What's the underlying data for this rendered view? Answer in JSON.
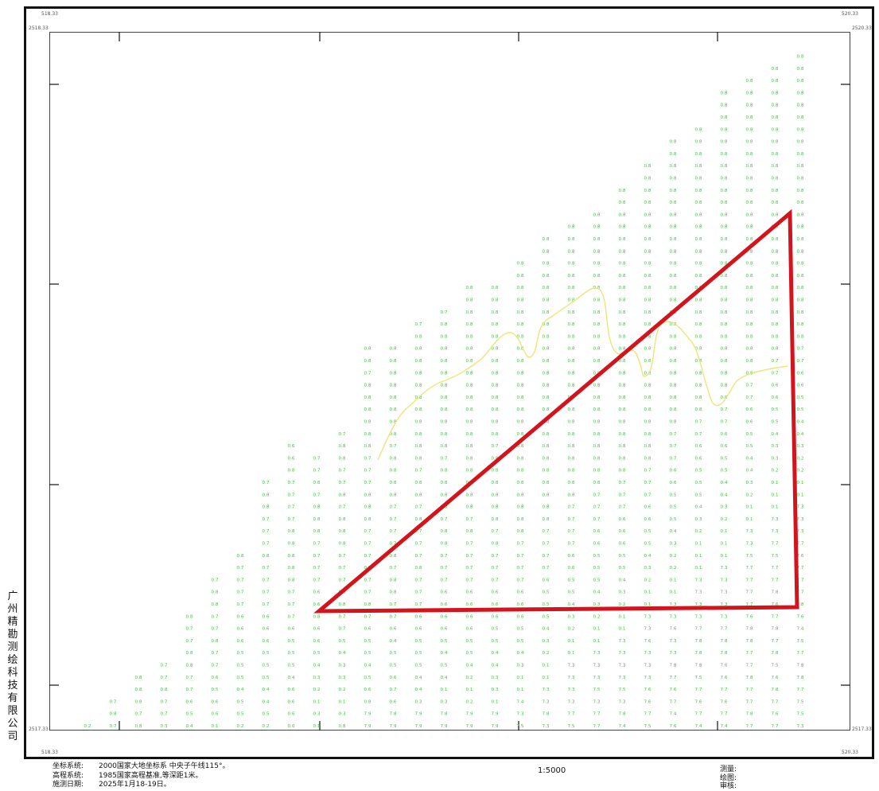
{
  "corners": {
    "top_left_x": "518.33",
    "top_left_y": "2518.33",
    "top_right_x": "520.33",
    "top_right_y": "2520.33",
    "bottom_left_x": "518.33",
    "bottom_left_y": "2517.33",
    "bottom_right_x": "520.33",
    "bottom_right_y": "2517.33"
  },
  "company": [
    "广",
    "州",
    "精",
    "勘",
    "测",
    "绘",
    "科",
    "技",
    "有",
    "限",
    "公",
    "司"
  ],
  "info": {
    "coord_label": "坐标系统:",
    "coord_value": "2000国家大地坐标系 中央子午线115°。",
    "height_label": "高程系统:",
    "height_value": "1985国家高程基准,等深距1米。",
    "date_label": "施测日期:",
    "date_value": "2025年1月18-19日。"
  },
  "scale": "1:5000",
  "staff": {
    "survey": "测量:",
    "draw": "绘图:",
    "check": "审核:"
  },
  "colors": {
    "soundings": "#3ec43e",
    "triangle": "#d4141c",
    "contour": "#ece57a",
    "frame": "#111111"
  },
  "icons": {
    "boundary": "triangle-boundary-icon",
    "contour": "depth-contour-line"
  },
  "soundings": [
    [
      "0.2"
    ],
    [
      "0.7",
      "0.8",
      "0.7"
    ],
    [
      "0.8",
      "0.7",
      "0.8",
      "0.8",
      "0.8"
    ],
    [
      "0.3",
      "0.7",
      "0.7",
      "0.8",
      "0.7",
      "0.7"
    ],
    [
      "0.4",
      "0.5",
      "0.6",
      "0.7",
      "0.7",
      "0.8",
      "0.8",
      "0.7",
      "0.7",
      "0.8"
    ],
    [
      "0.1",
      "0.6",
      "0.6",
      "0.5",
      "0.6",
      "0.7",
      "0.7",
      "0.8",
      "0.7",
      "0.7",
      "0.8",
      "0.8",
      "0.7"
    ],
    [
      "0.2",
      "0.5",
      "0.5",
      "0.4",
      "0.5",
      "0.5",
      "0.5",
      "0.6",
      "0.6",
      "0.6",
      "0.7",
      "0.7",
      "0.7",
      "0.7",
      "0.8"
    ],
    [
      "0.2",
      "0.5",
      "0.4",
      "0.4",
      "0.5",
      "0.5",
      "0.5",
      "0.6",
      "0.6",
      "0.6",
      "0.7",
      "0.7",
      "0.7",
      "0.7",
      "0.8",
      "0.7",
      "0.7",
      "0.7",
      "0.8",
      "0.8",
      "0.7"
    ],
    [
      "0.0",
      "0.6",
      "0.6",
      "0.6",
      "0.4",
      "0.5",
      "0.5",
      "0.5",
      "0.6",
      "0.7",
      "0.7",
      "0.7",
      "0.8",
      "0.8",
      "0.8",
      "0.8",
      "0.8",
      "0.7",
      "0.7",
      "0.7",
      "0.7",
      "0.8",
      "0.6",
      "0.6"
    ],
    [
      "0.1",
      "0.3",
      "0.1",
      "0.2",
      "0.3",
      "0.4",
      "0.5",
      "0.6",
      "0.6",
      "0.8",
      "0.6",
      "0.6",
      "0.7",
      "0.7",
      "0.7",
      "0.7",
      "0.8",
      "0.8",
      "0.8",
      "0.7",
      "0.8",
      "0.7",
      "0.7"
    ],
    [
      "0.8",
      "0.3",
      "0.1",
      "0.2",
      "0.3",
      "0.3",
      "0.4",
      "0.5",
      "0.7",
      "0.7",
      "0.8",
      "0.8",
      "0.7",
      "0.7",
      "0.7",
      "0.8",
      "0.8",
      "0.8",
      "0.7",
      "0.8",
      "0.7",
      "0.7",
      "0.8",
      "0.8",
      "0.7"
    ],
    [
      "7.9",
      "7.9",
      "0.8",
      "0.6",
      "0.5",
      "0.4",
      "0.5",
      "0.5",
      "0.6",
      "0.7",
      "0.8",
      "0.7",
      "0.7",
      "0.7",
      "0.7",
      "0.7",
      "0.7",
      "0.8",
      "0.8",
      "0.8",
      "0.7",
      "0.7",
      "0.7",
      "0.8",
      "0.8",
      "0.8",
      "0.8",
      "0.8",
      "0.8",
      "0.7",
      "0.8",
      "0.8"
    ],
    [
      "7.9",
      "7.8",
      "0.6",
      "0.7",
      "0.6",
      "0.5",
      "0.5",
      "0.4",
      "0.6",
      "0.7",
      "0.7",
      "0.8",
      "0.8",
      "0.7",
      "0.8",
      "0.7",
      "0.7",
      "0.7",
      "0.7",
      "0.8",
      "0.8",
      "0.8",
      "0.8",
      "0.7",
      "0.8",
      "0.8",
      "0.8",
      "0.8",
      "0.8",
      "0.8",
      "0.8",
      "0.8"
    ],
    [
      "7.9",
      "7.9",
      "0.3",
      "0.4",
      "0.4",
      "0.5",
      "0.5",
      "0.5",
      "0.6",
      "0.6",
      "0.7",
      "0.7",
      "0.7",
      "0.8",
      "0.7",
      "0.7",
      "0.7",
      "0.8",
      "0.7",
      "0.8",
      "0.8",
      "0.7",
      "0.8",
      "0.8",
      "0.8",
      "0.8",
      "0.8",
      "0.8",
      "0.8",
      "0.8",
      "0.8",
      "0.8",
      "0.8",
      "0.7"
    ],
    [
      "7.9",
      "7.8",
      "0.3",
      "0.1",
      "0.4",
      "0.5",
      "0.4",
      "0.5",
      "0.6",
      "0.6",
      "0.6",
      "0.6",
      "0.7",
      "0.7",
      "0.7",
      "0.8",
      "0.8",
      "0.7",
      "0.8",
      "0.8",
      "0.8",
      "0.8",
      "0.7",
      "0.8",
      "0.8",
      "0.8",
      "0.8",
      "0.8",
      "0.8",
      "0.8",
      "0.8",
      "0.8",
      "0.8",
      "0.8",
      "0.7"
    ],
    [
      "7.9",
      "7.9",
      "0.2",
      "0.1",
      "0.2",
      "0.4",
      "0.5",
      "0.5",
      "0.6",
      "0.6",
      "0.6",
      "0.6",
      "0.7",
      "0.7",
      "0.7",
      "0.7",
      "0.8",
      "0.7",
      "0.8",
      "0.8",
      "0.7",
      "0.8",
      "0.8",
      "0.8",
      "0.8",
      "0.8",
      "0.8",
      "0.8",
      "0.8",
      "0.8",
      "0.8",
      "0.8",
      "0.8",
      "0.8",
      "0.8",
      "0.8",
      "0.8"
    ],
    [
      "7.9",
      "7.9",
      "0.1",
      "0.3",
      "0.3",
      "0.4",
      "0.4",
      "0.5",
      "0.5",
      "0.6",
      "0.6",
      "0.6",
      "0.7",
      "0.7",
      "0.7",
      "0.8",
      "0.7",
      "0.8",
      "0.8",
      "0.8",
      "0.8",
      "0.8",
      "0.8",
      "0.7",
      "0.8",
      "0.8",
      "0.8",
      "0.8",
      "0.8",
      "0.8",
      "0.8",
      "0.8",
      "0.8",
      "0.8",
      "0.8",
      "0.8",
      "0.8"
    ],
    [
      "7.5",
      "7.3",
      "7.4",
      "0.1",
      "0.1",
      "0.3",
      "0.4",
      "0.5",
      "0.5",
      "0.6",
      "0.6",
      "0.6",
      "0.7",
      "0.7",
      "0.7",
      "0.7",
      "0.8",
      "0.8",
      "0.8",
      "0.8",
      "0.8",
      "0.8",
      "0.8",
      "0.8",
      "0.8",
      "0.8",
      "0.8",
      "0.8",
      "0.8",
      "0.8",
      "0.8",
      "0.8",
      "0.8",
      "0.8",
      "0.8",
      "0.8",
      "0.8",
      "0.8",
      "0.8"
    ],
    [
      "7.3",
      "7.8",
      "7.3",
      "7.3",
      "0.1",
      "0.1",
      "0.2",
      "0.3",
      "0.4",
      "0.5",
      "0.5",
      "0.5",
      "0.6",
      "0.7",
      "0.7",
      "0.7",
      "0.7",
      "0.8",
      "0.8",
      "0.8",
      "0.8",
      "0.8",
      "0.8",
      "0.8",
      "0.8",
      "0.8",
      "0.8",
      "0.8",
      "0.8",
      "0.8",
      "0.8",
      "0.8",
      "0.8",
      "0.8",
      "0.8",
      "0.8",
      "0.8",
      "0.8",
      "0.8",
      "0.8",
      "0.8"
    ],
    [
      "7.5",
      "7.7",
      "7.3",
      "7.3",
      "7.3",
      "7.3",
      "0.1",
      "0.1",
      "0.2",
      "0.3",
      "0.4",
      "0.5",
      "0.5",
      "0.6",
      "0.6",
      "0.7",
      "0.7",
      "0.7",
      "0.7",
      "0.8",
      "0.8",
      "0.8",
      "0.8",
      "0.8",
      "0.8",
      "0.8",
      "0.8",
      "0.8",
      "0.8",
      "0.8",
      "0.8",
      "0.8",
      "0.8",
      "0.8",
      "0.8",
      "0.8",
      "0.8",
      "0.8",
      "0.8",
      "0.8",
      "0.8",
      "0.8"
    ],
    [
      "7.7",
      "7.7",
      "7.3",
      "7.5",
      "7.3",
      "7.3",
      "7.3",
      "0.1",
      "0.1",
      "0.2",
      "0.3",
      "0.4",
      "0.5",
      "0.5",
      "0.5",
      "0.6",
      "0.6",
      "0.7",
      "0.7",
      "0.7",
      "0.8",
      "0.8",
      "0.8",
      "0.8",
      "0.8",
      "0.8",
      "0.8",
      "0.8",
      "0.8",
      "0.8",
      "0.8",
      "0.8",
      "0.8",
      "0.8",
      "0.8",
      "0.8",
      "0.8",
      "0.8",
      "0.8",
      "0.8",
      "0.8",
      "0.8",
      "0.8"
    ],
    [
      "7.4",
      "7.8",
      "7.3",
      "7.5",
      "7.3",
      "7.3",
      "7.3",
      "7.3",
      "0.1",
      "0.1",
      "0.2",
      "0.3",
      "0.4",
      "0.5",
      "0.5",
      "0.6",
      "0.6",
      "0.6",
      "0.7",
      "0.7",
      "0.7",
      "0.8",
      "0.8",
      "0.8",
      "0.8",
      "0.8",
      "0.8",
      "0.8",
      "0.8",
      "0.8",
      "0.8",
      "0.8",
      "0.8",
      "0.8",
      "0.8",
      "0.8",
      "0.8",
      "0.8",
      "0.8",
      "0.8",
      "0.8",
      "0.8",
      "0.8",
      "0.8",
      "0.8"
    ],
    [
      "7.5",
      "7.7",
      "7.6",
      "7.6",
      "7.3",
      "7.3",
      "7.3",
      "7.6",
      "7.3",
      "7.3",
      "0.1",
      "0.1",
      "0.2",
      "0.3",
      "0.4",
      "0.5",
      "0.5",
      "0.6",
      "0.6",
      "0.7",
      "0.7",
      "0.7",
      "0.8",
      "0.8",
      "0.8",
      "0.8",
      "0.8",
      "0.8",
      "0.8",
      "0.8",
      "0.8",
      "0.8",
      "0.8",
      "0.8",
      "0.8",
      "0.8",
      "0.8",
      "0.8",
      "0.8",
      "0.8",
      "0.8",
      "0.8",
      "0.8",
      "0.8",
      "0.8",
      "0.8",
      "0.8"
    ],
    [
      "7.6",
      "7.4",
      "7.7",
      "7.6",
      "7.7",
      "7.8",
      "7.3",
      "7.3",
      "7.6",
      "7.3",
      "7.3",
      "0.1",
      "0.1",
      "0.2",
      "0.2",
      "0.3",
      "0.4",
      "0.5",
      "0.5",
      "0.5",
      "0.6",
      "0.6",
      "0.7",
      "0.7",
      "0.7",
      "0.8",
      "0.8",
      "0.8",
      "0.8",
      "0.8",
      "0.8",
      "0.8",
      "0.8",
      "0.8",
      "0.8",
      "0.8",
      "0.8",
      "0.8",
      "0.8",
      "0.8",
      "0.8",
      "0.8",
      "0.8",
      "0.8",
      "0.8",
      "0.8",
      "0.8",
      "0.8",
      "0.8"
    ],
    [
      "7.4",
      "7.7",
      "7.6",
      "7.7",
      "7.5",
      "7.8",
      "7.8",
      "7.8",
      "7.7",
      "7.3",
      "7.3",
      "7.3",
      "7.3",
      "0.1",
      "0.1",
      "0.1",
      "0.2",
      "0.3",
      "0.4",
      "0.5",
      "0.5",
      "0.5",
      "0.6",
      "0.6",
      "0.7",
      "0.7",
      "0.8",
      "0.8",
      "0.8",
      "0.8",
      "0.8",
      "0.8",
      "0.8",
      "0.8",
      "0.8",
      "0.8",
      "0.8",
      "0.8",
      "0.8",
      "0.8",
      "0.8",
      "0.8",
      "0.8",
      "0.8",
      "0.8",
      "0.8",
      "0.8",
      "0.8",
      "0.8",
      "0.8"
    ],
    [
      "7.4",
      "7.7",
      "7.6",
      "7.7",
      "7.6",
      "7.6",
      "7.8",
      "7.8",
      "7.7",
      "7.3",
      "7.3",
      "7.3",
      "7.3",
      "7.3",
      "0.1",
      "0.1",
      "0.1",
      "0.2",
      "0.3",
      "0.4",
      "0.4",
      "0.5",
      "0.5",
      "0.6",
      "0.6",
      "0.7",
      "0.7",
      "0.8",
      "0.8",
      "0.8",
      "0.8",
      "0.8",
      "0.8",
      "0.8",
      "0.8",
      "0.8",
      "0.8",
      "0.8",
      "0.8",
      "0.8",
      "0.8",
      "0.8",
      "0.8",
      "0.8",
      "0.8",
      "0.8",
      "0.8",
      "0.8",
      "0.8",
      "0.8",
      "0.8",
      "0.8",
      "0.8"
    ],
    [
      "7.7",
      "7.8",
      "7.7",
      "7.7",
      "7.8",
      "7.7",
      "7.7",
      "7.8",
      "7.8",
      "7.6",
      "7.7",
      "7.7",
      "7.7",
      "7.7",
      "7.5",
      "7.3",
      "7.3",
      "0.1",
      "0.1",
      "0.2",
      "0.3",
      "0.4",
      "0.4",
      "0.5",
      "0.5",
      "0.6",
      "0.6",
      "0.7",
      "0.7",
      "0.8",
      "0.8",
      "0.8",
      "0.8",
      "0.8",
      "0.8",
      "0.8",
      "0.8",
      "0.8",
      "0.8",
      "0.8",
      "0.8",
      "0.8",
      "0.8",
      "0.8",
      "0.8",
      "0.8",
      "0.8",
      "0.8",
      "0.8",
      "0.8",
      "0.8",
      "0.8",
      "0.8",
      "0.8"
    ],
    [
      "7.7",
      "7.6",
      "7.7",
      "7.8",
      "7.6",
      "7.5",
      "7.8",
      "7.7",
      "7.8",
      "7.7",
      "7.6",
      "7.8",
      "7.7",
      "7.7",
      "7.5",
      "7.7",
      "7.3",
      "7.3",
      "0.1",
      "0.1",
      "0.1",
      "0.2",
      "0.3",
      "0.3",
      "0.4",
      "0.5",
      "0.5",
      "0.6",
      "0.6",
      "0.7",
      "0.7",
      "0.8",
      "0.8",
      "0.8",
      "0.8",
      "0.8",
      "0.8",
      "0.8",
      "0.8",
      "0.8",
      "0.8",
      "0.8",
      "0.8",
      "0.8",
      "0.8",
      "0.8",
      "0.8",
      "0.8",
      "0.8",
      "0.8",
      "0.8",
      "0.8",
      "0.8",
      "0.8",
      "0.8"
    ],
    [
      "7.3",
      "7.5",
      "7.5",
      "7.7",
      "7.8",
      "7.8",
      "7.7",
      "7.5",
      "7.4",
      "7.6",
      "7.8",
      "7.7",
      "7.7",
      "7.7",
      "7.6",
      "7.7",
      "7.3",
      "7.3",
      "7.3",
      "0.1",
      "0.1",
      "0.2",
      "0.2",
      "0.3",
      "0.4",
      "0.4",
      "0.5",
      "0.5",
      "0.6",
      "0.6",
      "0.7",
      "0.7",
      "0.8",
      "0.8",
      "0.8",
      "0.8",
      "0.8",
      "0.8",
      "0.8",
      "0.8",
      "0.8",
      "0.8",
      "0.8",
      "0.8",
      "0.8",
      "0.8",
      "0.8",
      "0.8",
      "0.8",
      "0.8",
      "0.8",
      "0.8",
      "0.8",
      "0.8",
      "0.8",
      "0.8"
    ]
  ]
}
